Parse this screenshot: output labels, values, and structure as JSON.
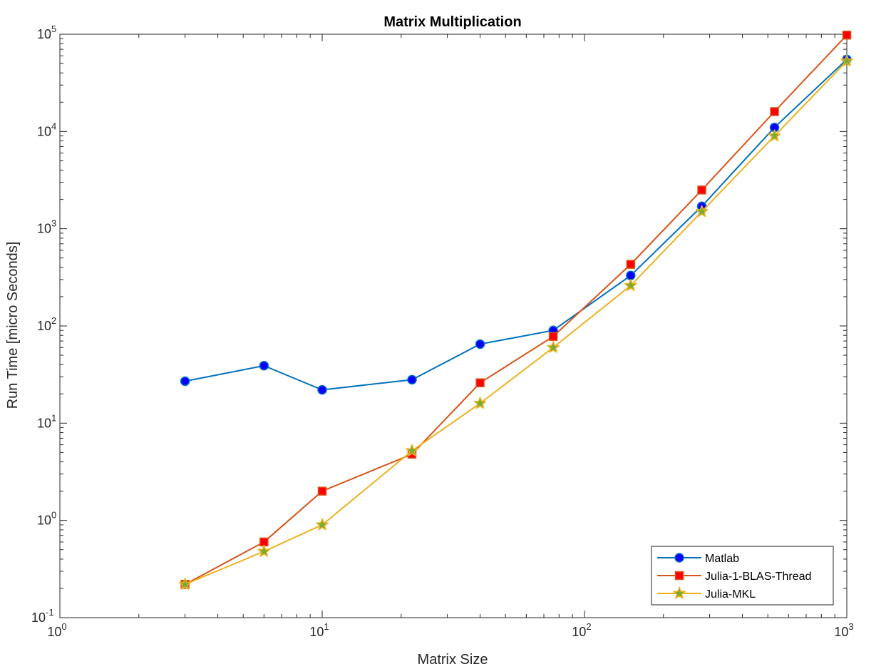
{
  "chart_data": {
    "type": "line",
    "title": "Matrix Multiplication",
    "xlabel": "Matrix Size",
    "ylabel": "Run Time  [micro Seconds]",
    "xscale": "log",
    "yscale": "log",
    "xlim": [
      1,
      1000
    ],
    "ylim": [
      0.1,
      100000
    ],
    "grid": false,
    "legend_position": "bottom-right",
    "x_ticks": [
      {
        "value": 1,
        "base": "10",
        "exp": "0"
      },
      {
        "value": 10,
        "base": "10",
        "exp": "1"
      },
      {
        "value": 100,
        "base": "10",
        "exp": "2"
      },
      {
        "value": 1000,
        "base": "10",
        "exp": "3"
      }
    ],
    "y_ticks": [
      {
        "value": 0.1,
        "base": "10",
        "exp": "-1"
      },
      {
        "value": 1,
        "base": "10",
        "exp": "0"
      },
      {
        "value": 10,
        "base": "10",
        "exp": "1"
      },
      {
        "value": 100,
        "base": "10",
        "exp": "2"
      },
      {
        "value": 1000,
        "base": "10",
        "exp": "3"
      },
      {
        "value": 10000,
        "base": "10",
        "exp": "4"
      },
      {
        "value": 100000,
        "base": "10",
        "exp": "5"
      }
    ],
    "x": [
      3,
      6,
      10,
      22,
      40,
      76,
      150,
      280,
      530,
      1000
    ],
    "series": [
      {
        "name": "Matlab",
        "color": "#0072BD",
        "marker": "circle",
        "marker_face": "#0000FF",
        "values": [
          27,
          39,
          22,
          28,
          65,
          90,
          330,
          1700,
          11000,
          55000
        ]
      },
      {
        "name": "Julia-1-BLAS-Thread",
        "color": "#D95319",
        "marker": "square",
        "marker_face": "#FF0000",
        "values": [
          0.22,
          0.6,
          2.0,
          4.8,
          26,
          78,
          430,
          2500,
          16000,
          98000
        ]
      },
      {
        "name": "Julia-MKL",
        "color": "#EDB120",
        "marker": "star",
        "marker_face": "#77AC30",
        "values": [
          0.22,
          0.48,
          0.9,
          5.2,
          16,
          60,
          260,
          1500,
          9000,
          53000
        ]
      }
    ]
  }
}
